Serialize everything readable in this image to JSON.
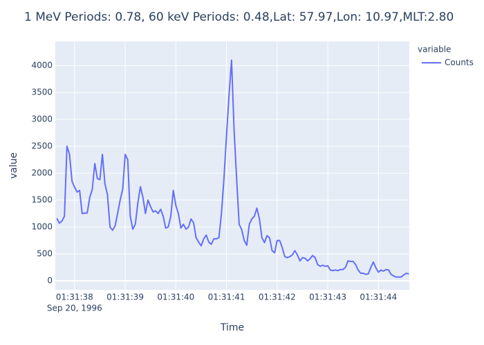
{
  "chart_data": {
    "type": "line",
    "title": "1 MeV Periods: 0.78, 60 keV Periods: 0.48,Lat: 57.97,Lon: 10.97,MLT:2.80",
    "x_label": "Time",
    "y_label": "value",
    "legend_title": "variable",
    "x_date_label": "Sep 20, 1996",
    "x": [
      "1996-09-20 01:31:37.65",
      "1996-09-20 01:31:37.70",
      "1996-09-20 01:31:37.75",
      "1996-09-20 01:31:37.80",
      "1996-09-20 01:31:37.85",
      "1996-09-20 01:31:37.90",
      "1996-09-20 01:31:37.95",
      "1996-09-20 01:31:38.00",
      "1996-09-20 01:31:38.05",
      "1996-09-20 01:31:38.10",
      "1996-09-20 01:31:38.15",
      "1996-09-20 01:31:38.20",
      "1996-09-20 01:31:38.25",
      "1996-09-20 01:31:38.30",
      "1996-09-20 01:31:38.35",
      "1996-09-20 01:31:38.40",
      "1996-09-20 01:31:38.45",
      "1996-09-20 01:31:38.50",
      "1996-09-20 01:31:38.55",
      "1996-09-20 01:31:38.60",
      "1996-09-20 01:31:38.65",
      "1996-09-20 01:31:38.70",
      "1996-09-20 01:31:38.75",
      "1996-09-20 01:31:38.80",
      "1996-09-20 01:31:38.85",
      "1996-09-20 01:31:38.90",
      "1996-09-20 01:31:38.95",
      "1996-09-20 01:31:39.00",
      "1996-09-20 01:31:39.05",
      "1996-09-20 01:31:39.10",
      "1996-09-20 01:31:39.15",
      "1996-09-20 01:31:39.20",
      "1996-09-20 01:31:39.25",
      "1996-09-20 01:31:39.30",
      "1996-09-20 01:31:39.35",
      "1996-09-20 01:31:39.40",
      "1996-09-20 01:31:39.45",
      "1996-09-20 01:31:39.50",
      "1996-09-20 01:31:39.55",
      "1996-09-20 01:31:39.60",
      "1996-09-20 01:31:39.65",
      "1996-09-20 01:31:39.70",
      "1996-09-20 01:31:39.75",
      "1996-09-20 01:31:39.80",
      "1996-09-20 01:31:39.85",
      "1996-09-20 01:31:39.90",
      "1996-09-20 01:31:39.95",
      "1996-09-20 01:31:40.00",
      "1996-09-20 01:31:40.05",
      "1996-09-20 01:31:40.10",
      "1996-09-20 01:31:40.15",
      "1996-09-20 01:31:40.20",
      "1996-09-20 01:31:40.25",
      "1996-09-20 01:31:40.30",
      "1996-09-20 01:31:40.35",
      "1996-09-20 01:31:40.40",
      "1996-09-20 01:31:40.45",
      "1996-09-20 01:31:40.50",
      "1996-09-20 01:31:40.55",
      "1996-09-20 01:31:40.60",
      "1996-09-20 01:31:40.65",
      "1996-09-20 01:31:40.70",
      "1996-09-20 01:31:40.75",
      "1996-09-20 01:31:40.80",
      "1996-09-20 01:31:40.85",
      "1996-09-20 01:31:40.90",
      "1996-09-20 01:31:40.95",
      "1996-09-20 01:31:41.00",
      "1996-09-20 01:31:41.05",
      "1996-09-20 01:31:41.10",
      "1996-09-20 01:31:41.15",
      "1996-09-20 01:31:41.20",
      "1996-09-20 01:31:41.25",
      "1996-09-20 01:31:41.30",
      "1996-09-20 01:31:41.35",
      "1996-09-20 01:31:41.40",
      "1996-09-20 01:31:41.45",
      "1996-09-20 01:31:41.50",
      "1996-09-20 01:31:41.55",
      "1996-09-20 01:31:41.60",
      "1996-09-20 01:31:41.65",
      "1996-09-20 01:31:41.70",
      "1996-09-20 01:31:41.75",
      "1996-09-20 01:31:41.80",
      "1996-09-20 01:31:41.85",
      "1996-09-20 01:31:41.90",
      "1996-09-20 01:31:41.95",
      "1996-09-20 01:31:42.00",
      "1996-09-20 01:31:42.05",
      "1996-09-20 01:31:42.10",
      "1996-09-20 01:31:42.15",
      "1996-09-20 01:31:42.20",
      "1996-09-20 01:31:42.25",
      "1996-09-20 01:31:42.30",
      "1996-09-20 01:31:42.35",
      "1996-09-20 01:31:42.40",
      "1996-09-20 01:31:42.45",
      "1996-09-20 01:31:42.50",
      "1996-09-20 01:31:42.55",
      "1996-09-20 01:31:42.60",
      "1996-09-20 01:31:42.65",
      "1996-09-20 01:31:42.70",
      "1996-09-20 01:31:42.75",
      "1996-09-20 01:31:42.80",
      "1996-09-20 01:31:42.85",
      "1996-09-20 01:31:42.90",
      "1996-09-20 01:31:42.95",
      "1996-09-20 01:31:43.00",
      "1996-09-20 01:31:43.05",
      "1996-09-20 01:31:43.10",
      "1996-09-20 01:31:43.15",
      "1996-09-20 01:31:43.20",
      "1996-09-20 01:31:43.25",
      "1996-09-20 01:31:43.30",
      "1996-09-20 01:31:43.35",
      "1996-09-20 01:31:43.40",
      "1996-09-20 01:31:43.45",
      "1996-09-20 01:31:43.50",
      "1996-09-20 01:31:43.55",
      "1996-09-20 01:31:43.60",
      "1996-09-20 01:31:43.65",
      "1996-09-20 01:31:43.70",
      "1996-09-20 01:31:43.75",
      "1996-09-20 01:31:43.80",
      "1996-09-20 01:31:43.85",
      "1996-09-20 01:31:43.90",
      "1996-09-20 01:31:43.95",
      "1996-09-20 01:31:44.00",
      "1996-09-20 01:31:44.05",
      "1996-09-20 01:31:44.10",
      "1996-09-20 01:31:44.15",
      "1996-09-20 01:31:44.20",
      "1996-09-20 01:31:44.25",
      "1996-09-20 01:31:44.30",
      "1996-09-20 01:31:44.35",
      "1996-09-20 01:31:44.40",
      "1996-09-20 01:31:44.45",
      "1996-09-20 01:31:44.50",
      "1996-09-20 01:31:44.55",
      "1996-09-20 01:31:44.60"
    ],
    "series": [
      {
        "name": "Counts",
        "color": "#636efa",
        "values": [
          1160,
          1070,
          1110,
          1200,
          2500,
          2350,
          1850,
          1740,
          1650,
          1680,
          1250,
          1260,
          1260,
          1550,
          1700,
          2180,
          1900,
          1880,
          2350,
          1800,
          1600,
          1000,
          940,
          1020,
          1250,
          1500,
          1700,
          2350,
          2250,
          1200,
          960,
          1050,
          1450,
          1750,
          1550,
          1250,
          1500,
          1380,
          1280,
          1300,
          1250,
          1330,
          1200,
          980,
          1000,
          1200,
          1680,
          1400,
          1250,
          980,
          1050,
          960,
          1000,
          1150,
          1080,
          800,
          720,
          650,
          780,
          850,
          720,
          680,
          780,
          780,
          800,
          1250,
          1900,
          2700,
          3450,
          4100,
          2800,
          1900,
          1050,
          950,
          750,
          660,
          1050,
          1150,
          1200,
          1350,
          1150,
          800,
          710,
          840,
          800,
          560,
          520,
          750,
          750,
          620,
          450,
          430,
          450,
          480,
          560,
          480,
          370,
          430,
          420,
          370,
          410,
          470,
          430,
          300,
          270,
          290,
          270,
          280,
          200,
          190,
          200,
          190,
          210,
          210,
          250,
          370,
          360,
          360,
          300,
          200,
          140,
          140,
          120,
          130,
          250,
          350,
          240,
          160,
          200,
          180,
          210,
          200,
          120,
          90,
          70,
          70,
          70,
          110,
          140,
          130
        ]
      }
    ],
    "xlim": [
      "1996-09-20 01:31:37.62",
      "1996-09-20 01:31:44.61"
    ],
    "xticks": [
      {
        "value": "1996-09-20 01:31:38",
        "label": "01:31:38"
      },
      {
        "value": "1996-09-20 01:31:39",
        "label": "01:31:39"
      },
      {
        "value": "1996-09-20 01:31:40",
        "label": "01:31:40"
      },
      {
        "value": "1996-09-20 01:31:41",
        "label": "01:31:41"
      },
      {
        "value": "1996-09-20 01:31:42",
        "label": "01:31:42"
      },
      {
        "value": "1996-09-20 01:31:43",
        "label": "01:31:43"
      },
      {
        "value": "1996-09-20 01:31:44",
        "label": "01:31:44"
      }
    ],
    "ylim": [
      -167,
      4449
    ],
    "yticks": [
      0,
      500,
      1000,
      1500,
      2000,
      2500,
      3000,
      3500,
      4000
    ],
    "grid": true
  }
}
